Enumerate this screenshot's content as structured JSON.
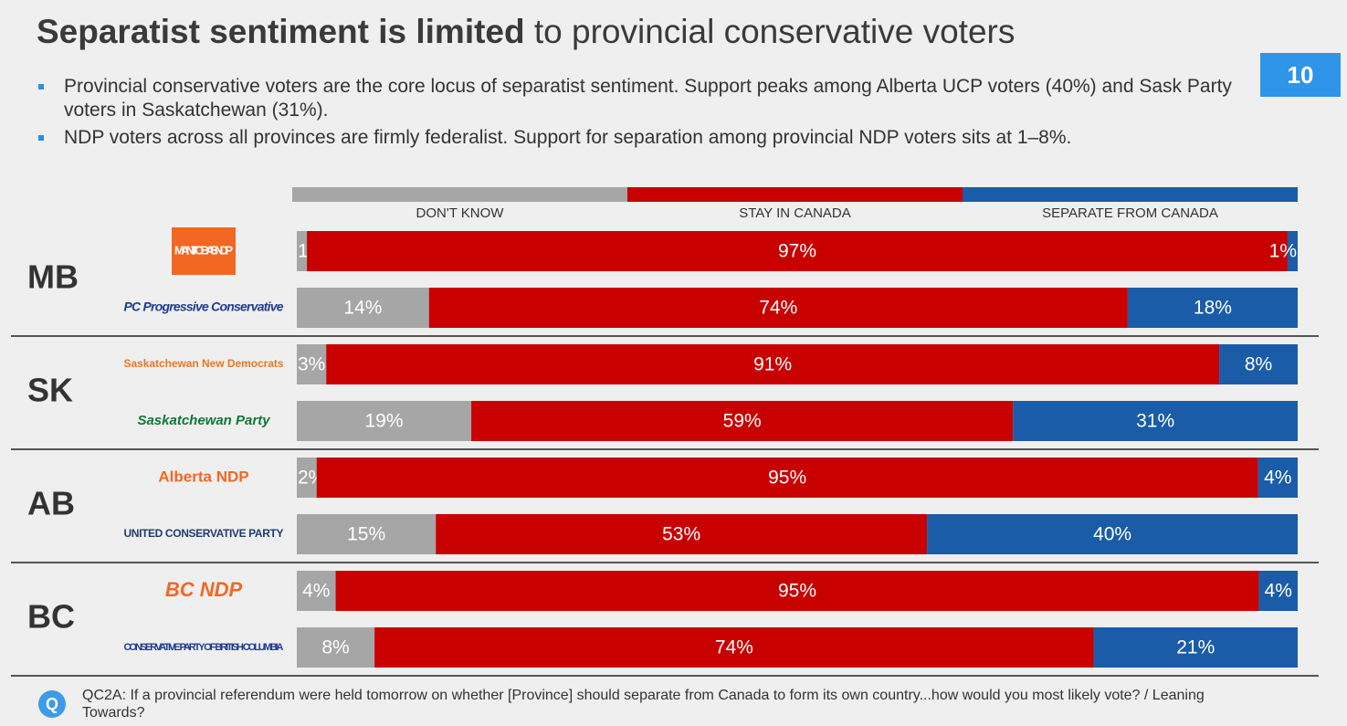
{
  "title_bold": "Separatist sentiment is limited",
  "title_rest": "to provincial conservative voters",
  "page_number": "10",
  "bullets": [
    "Provincial conservative voters are the core locus of separatist sentiment. Support peaks among Alberta UCP voters (40%) and Sask Party voters in Saskatchewan (31%).",
    "NDP voters across all provinces are firmly federalist. Support for separation among provincial NDP voters sits at 1–8%."
  ],
  "footnote_icon": "Q",
  "footnote": "QC2A: If a provincial referendum were held tomorrow on whether [Province] should separate from Canada to form its own country...how would you most likely vote? / Leaning Towards?",
  "chart_data": {
    "type": "bar",
    "orientation": "horizontal",
    "stacked": true,
    "groups": [
      "MB",
      "SK",
      "AB",
      "BC"
    ],
    "categories": [
      "MANITOBA'S NDP",
      "PC Progressive Conservative",
      "Saskatchewan New Democrats",
      "Saskatchewan Party",
      "Alberta NDP",
      "UNITED CONSERVATIVE PARTY",
      "BC NDP",
      "CONSERVATIVE PARTY OF BRITISH COLUMBIA"
    ],
    "series": [
      {
        "name": "DON'T KNOW",
        "color": "#a6a6a6",
        "values": [
          1,
          14,
          3,
          19,
          2,
          15,
          4,
          8
        ],
        "value_labels": [
          "1%",
          "14%",
          "3%",
          "19%",
          "2%",
          "15%",
          "4%",
          "8%"
        ]
      },
      {
        "name": "STAY IN CANADA",
        "color": "#c80000",
        "values": [
          97,
          74,
          91,
          59,
          95,
          53,
          95,
          74
        ],
        "value_labels": [
          "97%",
          "74%",
          "91%",
          "59%",
          "95%",
          "53%",
          "95%",
          "74%"
        ]
      },
      {
        "name": "SEPARATE FROM CANADA",
        "color": "#1a5ca8",
        "values": [
          1,
          18,
          8,
          31,
          4,
          40,
          4,
          21
        ],
        "value_labels": [
          "1%",
          "18%",
          "8%",
          "31%",
          "4%",
          "40%",
          "4%",
          "21%"
        ]
      }
    ]
  }
}
